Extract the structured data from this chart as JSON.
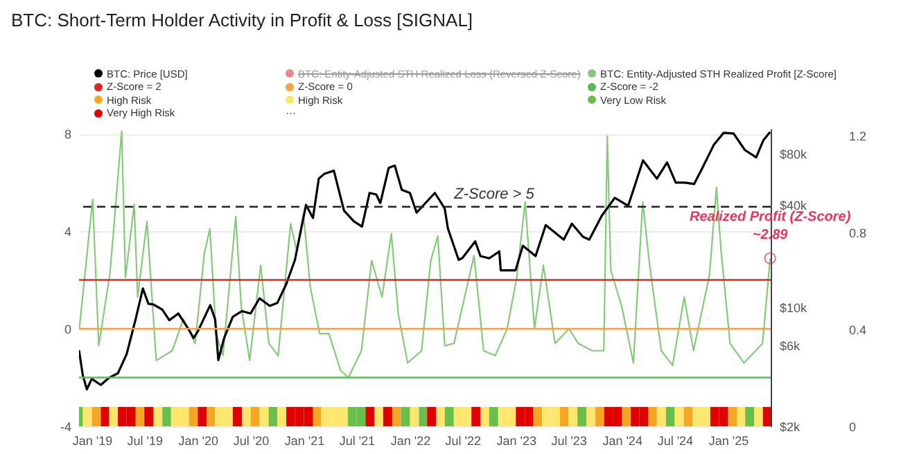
{
  "chart_data": {
    "type": "line",
    "title": "BTC: Short-Term Holder Activity in Profit & Loss [SIGNAL]",
    "xlim": [
      "2018-11-18",
      "2025-05-28"
    ],
    "xticks": [
      {
        "value": "2019-01-01",
        "label": "Jan '19"
      },
      {
        "value": "2019-07-01",
        "label": "Jul '19"
      },
      {
        "value": "2020-01-01",
        "label": "Jan '20"
      },
      {
        "value": "2020-07-01",
        "label": "Jul '20"
      },
      {
        "value": "2021-01-01",
        "label": "Jan '21"
      },
      {
        "value": "2021-07-01",
        "label": "Jul '21"
      },
      {
        "value": "2022-01-01",
        "label": "Jan '22"
      },
      {
        "value": "2022-07-01",
        "label": "Jul '22"
      },
      {
        "value": "2023-01-01",
        "label": "Jan '23"
      },
      {
        "value": "2023-07-01",
        "label": "Jul '23"
      },
      {
        "value": "2024-01-01",
        "label": "Jan '24"
      },
      {
        "value": "2024-07-01",
        "label": "Jul '24"
      },
      {
        "value": "2025-01-01",
        "label": "Jan '25"
      }
    ],
    "ylim": [
      -4,
      8.2
    ],
    "yticks": [
      -4,
      0,
      4,
      8
    ],
    "y2lim": [
      2000,
      112000
    ],
    "y2ticks": [
      {
        "value": 2000,
        "label": "$2k"
      },
      {
        "value": 6000,
        "label": "$6k"
      },
      {
        "value": 10000,
        "label": "$10k"
      },
      {
        "value": 40000,
        "label": "$40k"
      },
      {
        "value": 80000,
        "label": "$80k"
      }
    ],
    "y3lim": [
      0,
      1.23
    ],
    "y3ticks": [
      0,
      0.4,
      0.8,
      1.2
    ],
    "log": "y2",
    "grid": "y",
    "legend": "top",
    "ref_lines": [
      {
        "axis": "y",
        "value": 5,
        "label": "Z-Score > 5",
        "color": "#222222",
        "line_style": "dashed"
      },
      {
        "axis": "y",
        "value": 2,
        "label": "Z-Score = 2",
        "color": "#e02424",
        "line_style": "solid"
      },
      {
        "axis": "y",
        "value": 0,
        "label": "Z-Score = 0",
        "color": "#f4a340",
        "line_style": "solid"
      },
      {
        "axis": "y",
        "value": -2,
        "label": "Z-Score = -2",
        "color": "#5cb85c",
        "line_style": "solid"
      }
    ],
    "annotations": [
      {
        "text": "Realized Profit (Z-Score)",
        "x": "2025-05-26",
        "y": 2.89
      },
      {
        "text": "~2.89",
        "x": "2025-05-26",
        "y": 2.89
      },
      "···"
    ],
    "series": [
      {
        "name": "BTC: Price [USD]",
        "color": "#000000",
        "axis": "y2",
        "x": [
          "2018-11-18",
          "2018-12-01",
          "2018-12-15",
          "2019-01-01",
          "2019-02-01",
          "2019-03-01",
          "2019-04-01",
          "2019-05-01",
          "2019-06-01",
          "2019-06-26",
          "2019-07-15",
          "2019-08-01",
          "2019-09-01",
          "2019-09-25",
          "2019-10-26",
          "2019-12-01",
          "2019-12-18",
          "2020-01-01",
          "2020-02-13",
          "2020-03-01",
          "2020-03-12",
          "2020-04-01",
          "2020-05-01",
          "2020-06-01",
          "2020-07-01",
          "2020-08-01",
          "2020-09-05",
          "2020-10-01",
          "2020-11-01",
          "2020-12-01",
          "2021-01-08",
          "2021-02-01",
          "2021-02-21",
          "2021-03-13",
          "2021-04-14",
          "2021-05-19",
          "2021-06-22",
          "2021-07-20",
          "2021-08-15",
          "2021-09-07",
          "2021-09-21",
          "2021-10-20",
          "2021-11-10",
          "2021-12-04",
          "2022-01-01",
          "2022-01-24",
          "2022-03-28",
          "2022-05-01",
          "2022-05-12",
          "2022-06-18",
          "2022-07-01",
          "2022-08-14",
          "2022-09-01",
          "2022-10-01",
          "2022-11-05",
          "2022-11-10",
          "2022-12-31",
          "2023-01-25",
          "2023-03-10",
          "2023-04-14",
          "2023-06-15",
          "2023-07-13",
          "2023-08-20",
          "2023-09-11",
          "2023-10-24",
          "2023-12-08",
          "2024-01-23",
          "2024-02-15",
          "2024-03-14",
          "2024-05-01",
          "2024-06-05",
          "2024-07-05",
          "2024-08-05",
          "2024-09-06",
          "2024-10-01",
          "2024-11-13",
          "2024-12-17",
          "2025-01-20",
          "2025-02-28",
          "2025-04-08",
          "2025-05-03",
          "2025-05-26"
        ],
        "values": [
          5600,
          4000,
          3300,
          3800,
          3500,
          3850,
          4100,
          5300,
          8500,
          12900,
          10500,
          10400,
          9700,
          8400,
          9200,
          7400,
          6600,
          7200,
          10300,
          8500,
          4900,
          6600,
          8800,
          9500,
          9200,
          11300,
          10200,
          10600,
          13700,
          19000,
          40000,
          33500,
          57000,
          61000,
          63500,
          37000,
          32000,
          29800,
          47000,
          46000,
          41000,
          66000,
          68000,
          49000,
          47000,
          36000,
          47000,
          38000,
          29000,
          19000,
          19500,
          24400,
          20000,
          19400,
          21300,
          16500,
          16500,
          23000,
          20000,
          30400,
          25000,
          31000,
          26000,
          25000,
          34500,
          44000,
          39500,
          52000,
          73000,
          57000,
          71000,
          54000,
          54000,
          53000,
          64000,
          90000,
          106000,
          105000,
          84000,
          76000,
          96000,
          107000
        ]
      },
      {
        "name": "BTC: Entity-Adjusted STH Realized Loss (Reversed Z-Score)",
        "color": "#e88a8a"
      },
      {
        "name": "BTC: Entity-Adjusted STH Realized Profit [Z-Score]",
        "color": "#86c97c",
        "x": [
          "2018-11-19",
          "2019-01-04",
          "2019-01-25",
          "2019-03-05",
          "2019-04-14",
          "2019-04-27",
          "2019-05-27",
          "2019-06-08",
          "2019-07-10",
          "2019-08-11",
          "2019-10-05",
          "2019-11-13",
          "2019-12-23",
          "2020-01-24",
          "2020-02-12",
          "2020-03-04",
          "2020-03-28",
          "2020-05-11",
          "2020-05-30",
          "2020-06-28",
          "2020-08-05",
          "2020-09-02",
          "2020-10-04",
          "2020-11-16",
          "2020-12-07",
          "2020-12-30",
          "2021-01-23",
          "2021-02-24",
          "2021-03-28",
          "2021-05-07",
          "2021-06-03",
          "2021-07-18",
          "2021-08-22",
          "2021-09-27",
          "2021-10-29",
          "2021-11-22",
          "2021-12-24",
          "2022-02-10",
          "2022-03-14",
          "2022-04-07",
          "2022-05-01",
          "2022-06-02",
          "2022-08-10",
          "2022-09-12",
          "2022-10-22",
          "2022-12-02",
          "2023-01-04",
          "2023-02-02",
          "2023-03-06",
          "2023-04-06",
          "2023-05-16",
          "2023-07-03",
          "2023-08-04",
          "2023-09-21",
          "2023-10-31",
          "2023-11-12",
          "2023-11-24",
          "2024-01-01",
          "2024-02-10",
          "2024-03-13",
          "2024-04-06",
          "2024-05-16",
          "2024-06-24",
          "2024-08-03",
          "2024-09-04",
          "2024-10-29",
          "2024-11-22",
          "2024-12-08",
          "2025-01-08",
          "2025-02-25",
          "2025-04-30",
          "2025-05-26"
        ],
        "values": [
          0.0,
          5.3,
          -0.7,
          2.3,
          8.1,
          2.1,
          5.1,
          1.3,
          4.4,
          -1.3,
          -0.9,
          0.4,
          -0.6,
          3.1,
          4.1,
          -0.2,
          -1.1,
          4.6,
          0.9,
          -1.3,
          2.6,
          -0.6,
          -1.1,
          4.3,
          3.2,
          4.7,
          1.7,
          -0.2,
          -0.2,
          -1.7,
          -2.0,
          -0.9,
          2.8,
          1.3,
          3.9,
          0.6,
          -1.4,
          -0.9,
          2.8,
          3.8,
          -0.7,
          -0.6,
          3.0,
          -0.9,
          -1.1,
          0.0,
          2.1,
          5.2,
          0.0,
          2.6,
          -0.6,
          0.0,
          -0.6,
          -0.9,
          -0.9,
          7.9,
          2.4,
          0.9,
          -1.4,
          5.2,
          2.6,
          -0.9,
          -1.5,
          1.3,
          -0.9,
          2.2,
          5.8,
          3.2,
          -0.6,
          -1.4,
          -0.6,
          2.89
        ]
      },
      {
        "name": "High Risk",
        "color": "#f5a623",
        "type": "bar",
        "axis": "y3",
        "x": [
          "2019-01",
          "2019-06",
          "2019-12",
          "2020-02",
          "2020-07",
          "2021-02",
          "2021-11",
          "2023-03",
          "2023-06",
          "2023-10",
          "2024-01",
          "2024-04",
          "2024-08",
          "2025-01"
        ],
        "values": [
          0.08,
          0.08,
          0.08,
          0.08,
          0.08,
          0.08,
          0.08,
          0.08,
          0.08,
          0.08,
          0.08,
          0.08,
          0.08,
          0.08
        ]
      },
      {
        "name": "High Risk",
        "color": "#ffe66d",
        "type": "bar",
        "axis": "y3",
        "x": [
          "2018-12",
          "2019-03",
          "2019-08",
          "2019-10",
          "2019-11",
          "2020-03",
          "2020-04",
          "2020-06",
          "2020-08",
          "2020-10",
          "2021-03",
          "2021-04",
          "2021-05",
          "2021-09",
          "2022-01",
          "2022-04",
          "2022-06",
          "2022-07",
          "2022-09",
          "2022-11",
          "2022-12",
          "2023-04",
          "2023-05",
          "2023-07",
          "2023-09",
          "2024-05",
          "2024-07",
          "2024-09",
          "2024-10",
          "2025-02",
          "2025-04"
        ],
        "values": [
          0.08,
          0.08,
          0.08,
          0.08,
          0.08,
          0.08,
          0.08,
          0.08,
          0.08,
          0.08,
          0.08,
          0.08,
          0.08,
          0.08,
          0.08,
          0.08,
          0.08,
          0.08,
          0.08,
          0.08,
          0.08,
          0.08,
          0.08,
          0.08,
          0.08,
          0.08,
          0.08,
          0.08,
          0.08,
          0.08,
          0.08
        ]
      },
      {
        "name": "Very Low Risk",
        "color": "#6abf4b",
        "type": "bar",
        "axis": "y3",
        "x": [
          "2018-11-18",
          "2019-09",
          "2020-09",
          "2021-06",
          "2021-07",
          "2021-12",
          "2022-02",
          "2022-05",
          "2022-10",
          "2023-08",
          "2024-06",
          "2025-03"
        ],
        "values": [
          0.08,
          0.08,
          0.08,
          0.08,
          0.08,
          0.08,
          0.08,
          0.08,
          0.08,
          0.08,
          0.08,
          0.08
        ]
      },
      {
        "name": "Very High Risk",
        "color": "#e00000",
        "type": "bar",
        "axis": "y3",
        "x": [
          "2019-02",
          "2019-04",
          "2019-05",
          "2019-07",
          "2020-01",
          "2020-05",
          "2020-11",
          "2020-12",
          "2021-01",
          "2021-08",
          "2021-10",
          "2022-03",
          "2022-08",
          "2023-01",
          "2023-02",
          "2023-11",
          "2023-12",
          "2024-02",
          "2024-03",
          "2024-11",
          "2024-12",
          "2025-05"
        ],
        "values": [
          0.08,
          0.08,
          0.08,
          0.08,
          0.08,
          0.08,
          0.08,
          0.08,
          0.08,
          0.08,
          0.08,
          0.08,
          0.08,
          0.08,
          0.08,
          0.08,
          0.08,
          0.08,
          0.08,
          0.08,
          0.08,
          0.08
        ]
      }
    ]
  }
}
